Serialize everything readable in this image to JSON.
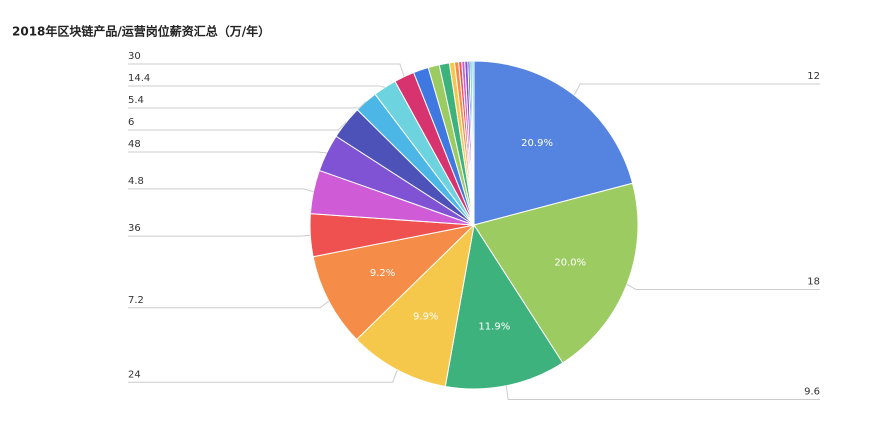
{
  "chart_data": {
    "type": "pie",
    "title": "2018年区块链产品/运营岗位薪资汇总（万/年）",
    "categories": [
      "12",
      "18",
      "9.6",
      "24",
      "7.2",
      "36",
      "4.8",
      "48",
      "6",
      "5.4",
      "14.4",
      "30",
      null,
      null,
      null,
      null,
      null,
      null,
      null,
      null,
      null,
      null,
      null
    ],
    "values": [
      20.9,
      20.0,
      11.9,
      9.9,
      9.2,
      4.2,
      4.3,
      3.7,
      3.3,
      2.3,
      2.3,
      2.0,
      1.5,
      1.1,
      1.0,
      0.5,
      0.4,
      0.3,
      0.3,
      0.3,
      0.2,
      0.2,
      0.2
    ],
    "value_labels": [
      "20.9%",
      "20.0%",
      "11.9%",
      "9.9%",
      "9.2%",
      null,
      null,
      null,
      null,
      null,
      null,
      null,
      null,
      null,
      null,
      null,
      null,
      null,
      null,
      null,
      null,
      null,
      null
    ],
    "colors": [
      "#5584e0",
      "#9ccb62",
      "#3db27c",
      "#f5c84b",
      "#f58c48",
      "#ef5150",
      "#cf5cd6",
      "#8052d4",
      "#4d52b8",
      "#4cb7e6",
      "#6dd3df",
      "#d6336f",
      "#3e78e0",
      "#9ccb62",
      "#3db27c",
      "#f5c84b",
      "#f58c48",
      "#ef5150",
      "#cf5cd6",
      "#8052d4",
      "#4d52b8",
      "#4cb7e6",
      "#6dd3df"
    ]
  }
}
